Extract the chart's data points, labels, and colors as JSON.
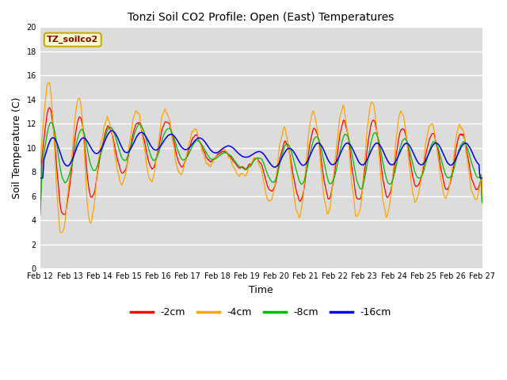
{
  "title": "Tonzi Soil CO2 Profile: Open (East) Temperatures",
  "xlabel": "Time",
  "ylabel": "Soil Temperature (C)",
  "ylim": [
    0,
    20
  ],
  "yticks": [
    0,
    2,
    4,
    6,
    8,
    10,
    12,
    14,
    16,
    18,
    20
  ],
  "colors": {
    "-2cm": "#FF0000",
    "-4cm": "#FFA500",
    "-8cm": "#00BB00",
    "-16cm": "#0000EE"
  },
  "legend_label": "TZ_soilco2",
  "legend_label_color": "#8B0000",
  "legend_box_facecolor": "#FFFFCC",
  "legend_box_edgecolor": "#CCAA00",
  "series_labels": [
    "-2cm",
    "-4cm",
    "-8cm",
    "-16cm"
  ],
  "plot_bg_color": "#DCDCDC",
  "fig_bg_color": "#FFFFFF",
  "n_days": 15,
  "x_labels": [
    "Feb 12",
    "Feb 13",
    "Feb 14",
    "Feb 15",
    "Feb 16",
    "Feb 17",
    "Feb 18",
    "Feb 19",
    "Feb 20",
    "Feb 21",
    "Feb 22",
    "Feb 23",
    "Feb 24",
    "Feb 25",
    "Feb 26",
    "Feb 27"
  ],
  "linewidth": 0.9,
  "title_fontsize": 10,
  "axis_fontsize": 9,
  "tick_fontsize": 7
}
